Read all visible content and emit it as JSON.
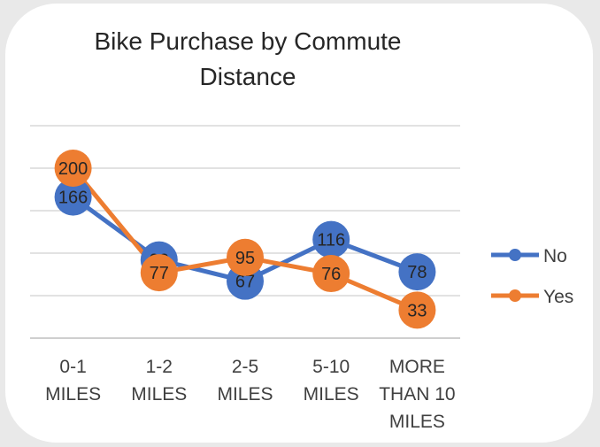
{
  "chart_data": {
    "type": "line",
    "title_lines": [
      "Bike Purchase by Commute",
      "Distance"
    ],
    "categories": [
      [
        "0-1",
        "MILES"
      ],
      [
        "1-2",
        "MILES"
      ],
      [
        "2-5",
        "MILES"
      ],
      [
        "5-10",
        "MILES"
      ],
      [
        "MORE",
        "THAN 10",
        "MILES"
      ]
    ],
    "series": [
      {
        "name": "No",
        "values": [
          166,
          92,
          67,
          116,
          78
        ],
        "color": "#4472C4"
      },
      {
        "name": "Yes",
        "values": [
          200,
          77,
          95,
          76,
          33
        ],
        "color": "#ED7D31"
      }
    ],
    "ylim": [
      0,
      250
    ],
    "grid": true,
    "data_labels": true,
    "legend_position": "right"
  }
}
